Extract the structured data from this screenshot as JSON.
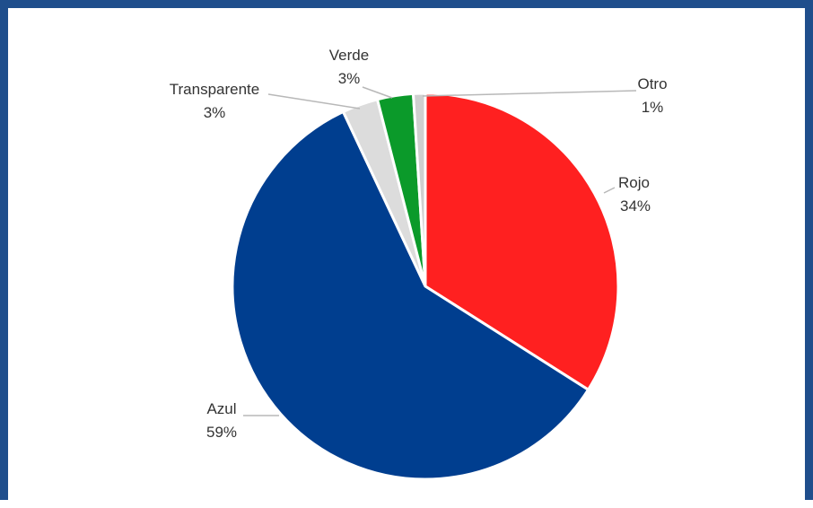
{
  "chart_data": {
    "type": "pie",
    "title": "",
    "slices": [
      {
        "label": "Rojo",
        "value": 34,
        "pct_label": "34%",
        "color": "#ff2020"
      },
      {
        "label": "Azul",
        "value": 59,
        "pct_label": "59%",
        "color": "#003e8f"
      },
      {
        "label": "Transparente",
        "value": 3,
        "pct_label": "3%",
        "color": "#dcdcdc"
      },
      {
        "label": "Verde",
        "value": 3,
        "pct_label": "3%",
        "color": "#0b9a2a"
      },
      {
        "label": "Otro",
        "value": 1,
        "pct_label": "1%",
        "color": "#cfcfcf"
      }
    ],
    "start": "12 o'clock",
    "direction": "clockwise",
    "legend": "none",
    "labels": "outside with leader lines"
  }
}
